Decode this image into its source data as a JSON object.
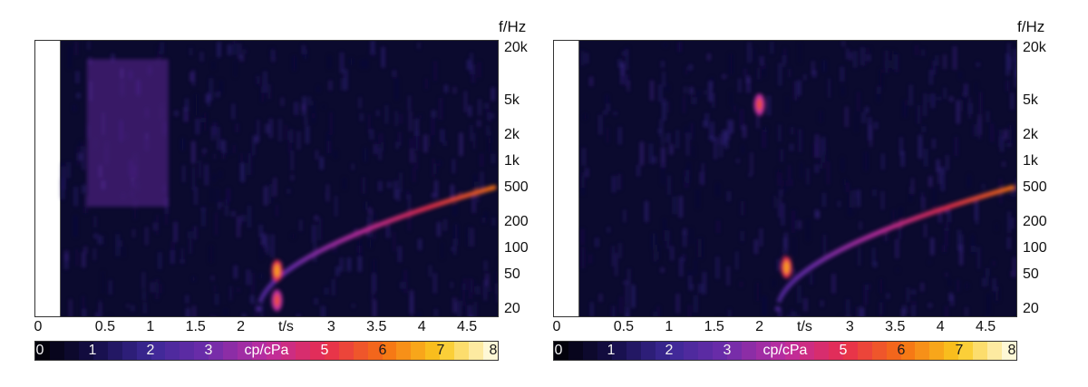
{
  "chart_data": [
    {
      "type": "heatmap",
      "panel": "left",
      "x_unit_label": "t/s",
      "y_unit_label": "f/Hz",
      "x_ticks": [
        "0",
        "0.5",
        "1",
        "1.5",
        "2",
        "3",
        "3.5",
        "4",
        "4.5"
      ],
      "x_tick_values": [
        0,
        0.5,
        1,
        1.5,
        2,
        3,
        3.5,
        4,
        4.5
      ],
      "y_ticks": [
        "20k",
        "5k",
        "2k",
        "1k",
        "500",
        "200",
        "100",
        "50",
        "20"
      ],
      "y_tick_values": [
        20000,
        5000,
        2000,
        1000,
        500,
        200,
        100,
        50,
        20
      ],
      "xlim": [
        0,
        4.85
      ],
      "ylim": [
        16,
        25000
      ],
      "y_scale": "log",
      "colorbar": {
        "label": "cp/cPa",
        "ticks": [
          "0",
          "1",
          "2",
          "3",
          "5",
          "6",
          "7",
          "8"
        ],
        "tick_values": [
          0,
          1,
          2,
          3,
          5,
          6,
          7,
          8
        ],
        "range": [
          0,
          8
        ]
      },
      "features": [
        {
          "kind": "chirp",
          "t_start": 2.2,
          "f_start": 20,
          "t_end": 4.8,
          "f_end": 500,
          "peak": 6
        },
        {
          "kind": "hotspot",
          "t": 2.4,
          "f": 55,
          "peak": 6.5
        },
        {
          "kind": "hotspot",
          "t": 2.4,
          "f": 25,
          "peak": 5.5
        },
        {
          "kind": "broadband",
          "t_start": 0.3,
          "t_end": 1.2,
          "f_low": 300,
          "f_high": 15000,
          "level": 3
        }
      ]
    },
    {
      "type": "heatmap",
      "panel": "right",
      "x_unit_label": "t/s",
      "y_unit_label": "f/Hz",
      "x_ticks": [
        "0",
        "0.5",
        "1",
        "1.5",
        "2",
        "3",
        "3.5",
        "4",
        "4.5"
      ],
      "x_tick_values": [
        0,
        0.5,
        1,
        1.5,
        2,
        3,
        3.5,
        4,
        4.5
      ],
      "y_ticks": [
        "20k",
        "5k",
        "2k",
        "1k",
        "500",
        "200",
        "100",
        "50",
        "20"
      ],
      "y_tick_values": [
        20000,
        5000,
        2000,
        1000,
        500,
        200,
        100,
        50,
        20
      ],
      "xlim": [
        0,
        4.85
      ],
      "ylim": [
        16,
        25000
      ],
      "y_scale": "log",
      "colorbar": {
        "label": "cp/cPa",
        "ticks": [
          "0",
          "1",
          "2",
          "3",
          "5",
          "6",
          "7",
          "8"
        ],
        "tick_values": [
          0,
          1,
          2,
          3,
          5,
          6,
          7,
          8
        ],
        "range": [
          0,
          8
        ]
      },
      "features": [
        {
          "kind": "chirp",
          "t_start": 2.2,
          "f_start": 20,
          "t_end": 4.8,
          "f_end": 500,
          "peak": 6
        },
        {
          "kind": "hotspot",
          "t": 2.3,
          "f": 60,
          "peak": 6.5
        },
        {
          "kind": "hotspot",
          "t": 2.0,
          "f": 4500,
          "peak": 5.5
        }
      ]
    }
  ]
}
